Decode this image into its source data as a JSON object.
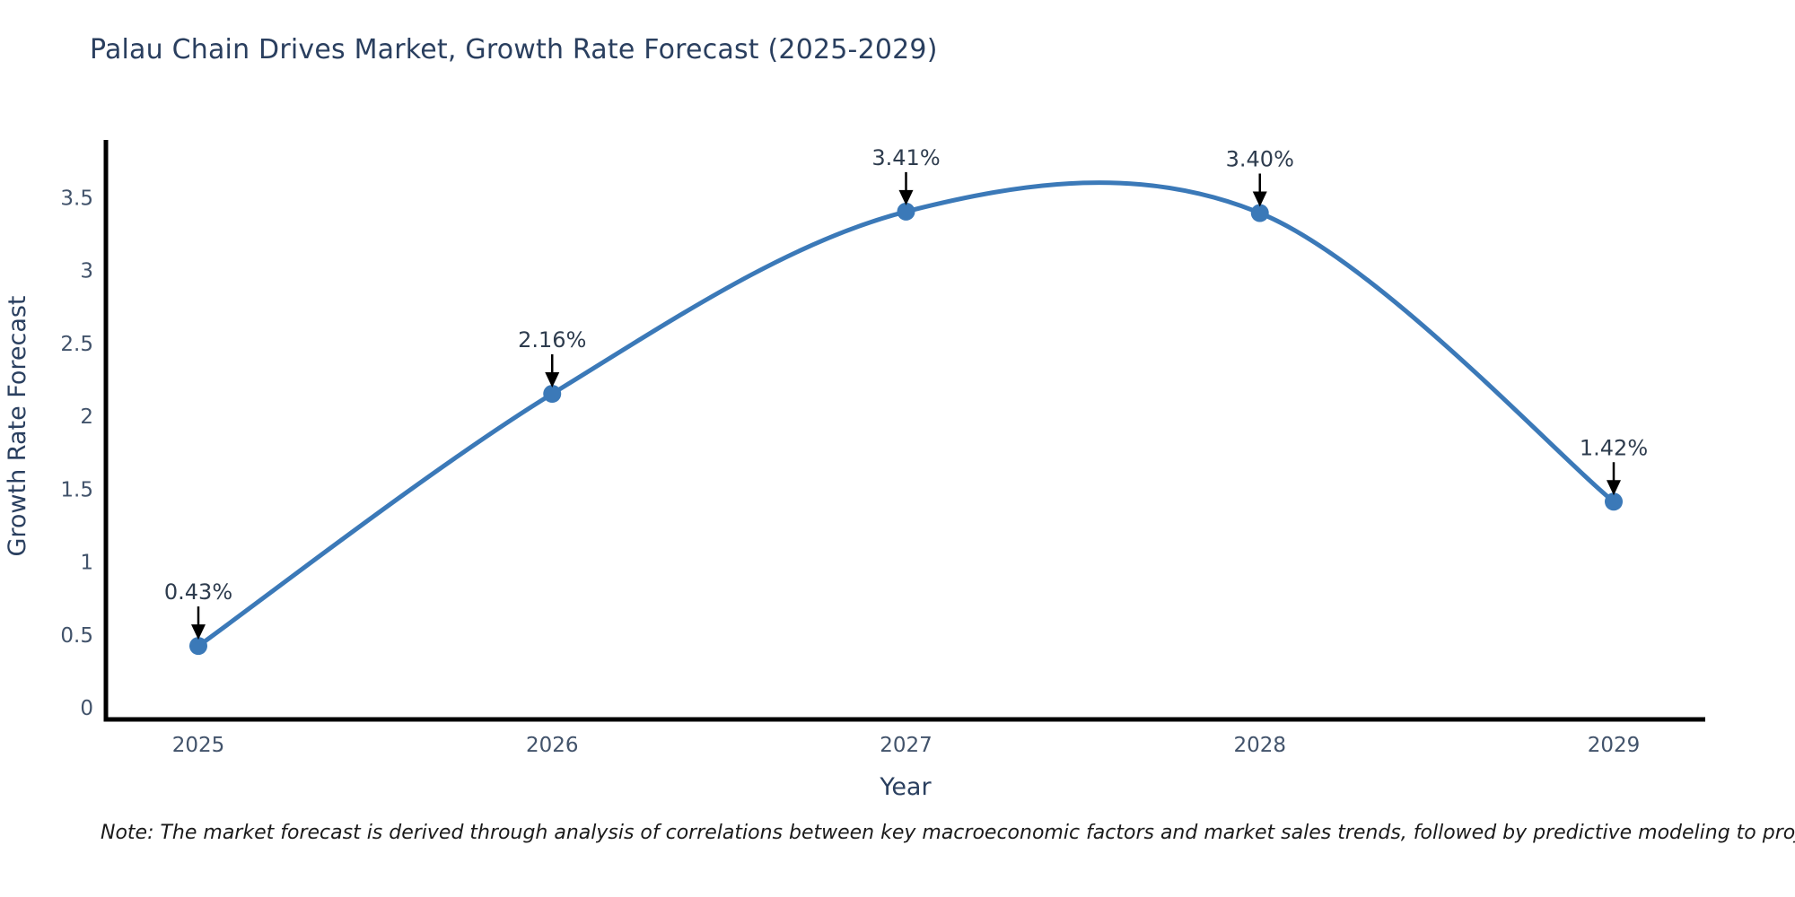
{
  "title": "Palau Chain Drives Market, Growth Rate Forecast (2025-2029)",
  "note": "Note: The market forecast is derived through analysis of correlations between key macroeconomic factors and market sales trends, followed by predictive modeling to project future sales",
  "chart_data": {
    "type": "line",
    "line_shape": "spline",
    "title": "Palau Chain Drives Market, Growth Rate Forecast (2025-2029)",
    "xlabel": "Year",
    "ylabel": "Growth Rate Forecast",
    "x": [
      2025,
      2026,
      2027,
      2028,
      2029
    ],
    "categories": [
      "2025",
      "2026",
      "2027",
      "2028",
      "2029"
    ],
    "values": [
      0.43,
      2.16,
      3.41,
      3.4,
      1.42
    ],
    "point_labels": [
      "0.43%",
      "2.16%",
      "3.41%",
      "3.40%",
      "1.42%"
    ],
    "yticks": [
      "0",
      "0.5",
      "1",
      "1.5",
      "2",
      "2.5",
      "3",
      "3.5"
    ],
    "ytick_values": [
      0,
      0.5,
      1,
      1.5,
      2,
      2.5,
      3,
      3.5
    ],
    "ylim": [
      0,
      3.9
    ],
    "grid": false,
    "legend_position": "none",
    "colors": {
      "line": "#3b79b8",
      "marker": "#3b79b8",
      "axis_line": "#000000",
      "annotation_arrow": "#000000",
      "annotation_text": "#2e3c4e",
      "tick_text": "#42536b",
      "axis_title_text": "#2a3f5f",
      "title_text": "#2a3f5f",
      "background": "#ffffff"
    }
  }
}
